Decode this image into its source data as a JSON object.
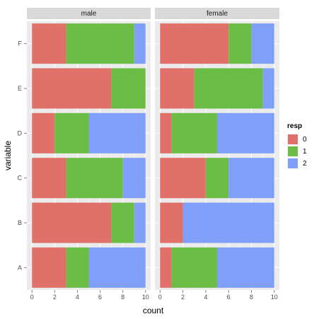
{
  "chart_data": {
    "type": "bar",
    "orientation": "horizontal",
    "stacked": true,
    "facets": [
      "male",
      "female"
    ],
    "categories": [
      "A",
      "B",
      "C",
      "D",
      "E",
      "F"
    ],
    "xlabel": "count",
    "ylabel": "variable",
    "xlim": [
      0,
      10
    ],
    "xticks": [
      0,
      2,
      4,
      6,
      8,
      10
    ],
    "grid": true,
    "legend": {
      "title": "resp",
      "placement": "right",
      "entries": [
        {
          "label": "0",
          "color": "#e0706a"
        },
        {
          "label": "1",
          "color": "#6cbd45"
        },
        {
          "label": "2",
          "color": "#7f9ff8"
        }
      ]
    },
    "series": [
      {
        "facet": "male",
        "values": {
          "A": [
            3,
            2,
            5
          ],
          "B": [
            7,
            2,
            1
          ],
          "C": [
            3,
            5,
            2
          ],
          "D": [
            2,
            3,
            5
          ],
          "E": [
            7,
            3,
            0
          ],
          "F": [
            3,
            6,
            1
          ]
        }
      },
      {
        "facet": "female",
        "values": {
          "A": [
            1,
            4,
            5
          ],
          "B": [
            2,
            0,
            8
          ],
          "C": [
            4,
            2,
            4
          ],
          "D": [
            1,
            4,
            5
          ],
          "E": [
            3,
            6,
            1
          ],
          "F": [
            6,
            2,
            2
          ]
        }
      }
    ]
  }
}
